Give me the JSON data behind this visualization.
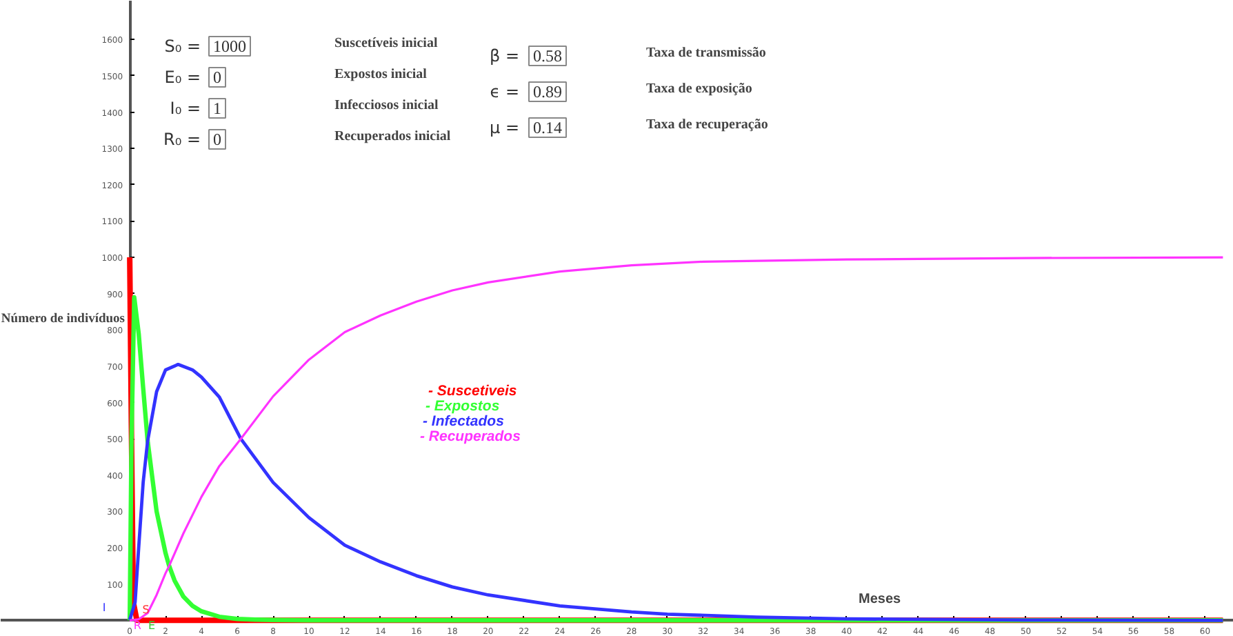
{
  "chart_data": {
    "type": "line",
    "xlabel": "Meses",
    "ylabel": "Número de indivíduos",
    "xlim": [
      -7.2,
      61.6
    ],
    "ylim": [
      -45,
      1707
    ],
    "xticks": [
      0,
      2,
      4,
      6,
      8,
      10,
      12,
      14,
      16,
      18,
      20,
      22,
      24,
      26,
      28,
      30,
      32,
      34,
      36,
      38,
      40,
      42,
      44,
      46,
      48,
      50,
      52,
      54,
      56,
      58,
      60
    ],
    "yticks": [
      100,
      200,
      300,
      400,
      500,
      600,
      700,
      800,
      900,
      1000,
      1100,
      1200,
      1300,
      1400,
      1500,
      1600
    ],
    "grid": false,
    "legend": "center",
    "marker": "none",
    "line_style": "solid",
    "series": [
      {
        "name": "- Suscetiveis",
        "color": "#ff0000",
        "x": [
          0,
          0.1,
          0.2,
          0.4,
          61
        ],
        "values": [
          1000,
          500,
          50,
          0,
          0
        ]
      },
      {
        "name": "- Expostos",
        "color": "#33ff33",
        "x": [
          0,
          0.1,
          0.25,
          0.5,
          0.75,
          1,
          1.5,
          2,
          2.2,
          2.5,
          3,
          3.5,
          4,
          5,
          6,
          7,
          8,
          10,
          61
        ],
        "values": [
          0,
          500,
          890,
          790,
          640,
          494,
          300,
          185,
          150,
          110,
          65,
          40,
          25,
          10,
          4,
          2,
          1,
          0,
          0
        ]
      },
      {
        "name": "- Infectados",
        "color": "#3333ff",
        "x": [
          0,
          0.3,
          0.5,
          0.75,
          1,
          1.5,
          2,
          2.7,
          3.5,
          4,
          5,
          6.2,
          8,
          10,
          12,
          14,
          16,
          18,
          20,
          24,
          28,
          30,
          35,
          40,
          50,
          61
        ],
        "values": [
          1,
          50,
          200,
          380,
          494,
          630,
          690,
          705,
          690,
          670,
          615,
          500,
          380,
          283,
          207,
          161,
          123,
          92,
          70,
          40,
          23,
          17,
          9,
          4,
          1,
          0
        ]
      },
      {
        "name": "- Recuperados",
        "color": "#ff33ff",
        "x": [
          0,
          0.5,
          1,
          1.5,
          2,
          2.2,
          3,
          4,
          5,
          6.2,
          8,
          10,
          12,
          14,
          16,
          18,
          20,
          24,
          28,
          32,
          40,
          50,
          61
        ],
        "values": [
          0,
          3,
          20,
          70,
          130,
          150,
          240,
          340,
          425,
          500,
          617,
          718,
          794,
          840,
          878,
          909,
          931,
          961,
          978,
          988,
          994,
          998,
          1000
        ]
      }
    ],
    "annotations": [
      "S₀ =",
      "1000",
      "Suscetíveis inicial",
      "E₀ =",
      "0",
      "Expostos inicial",
      "I₀ =",
      "1",
      "Infecciosos inicial",
      "R₀ =",
      "0",
      "Recuperados inicial",
      "β =",
      "0.58",
      "Taxa de transmissão",
      "ϵ =",
      "0.89",
      "Taxa de exposição",
      "μ =",
      "0.14",
      "Taxa de recuperação",
      {
        "text": "S",
        "x": 0.9,
        "y": 30
      },
      {
        "text": "R",
        "x": 0.2,
        "y": -15
      },
      {
        "text": "E",
        "x": 1,
        "y": -15
      },
      "I"
    ]
  }
}
